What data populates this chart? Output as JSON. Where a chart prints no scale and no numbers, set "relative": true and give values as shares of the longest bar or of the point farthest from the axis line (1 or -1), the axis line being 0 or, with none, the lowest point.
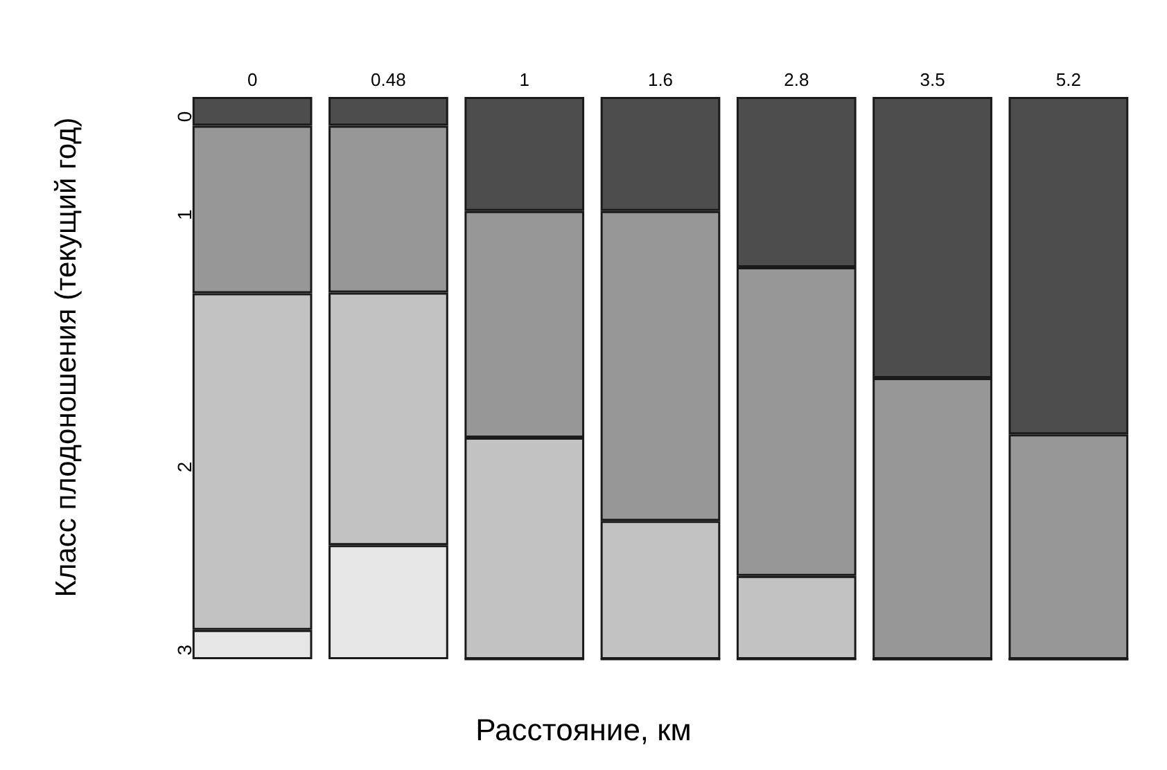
{
  "chart_data": {
    "type": "bar",
    "stacked": true,
    "relative": true,
    "xlabel": "Расстояние, км",
    "ylabel": "Класс плодоношения (текущий год)",
    "categories": [
      "0",
      "0.48",
      "1",
      "1.6",
      "2.8",
      "3.5",
      "5.2"
    ],
    "series": [
      {
        "name": "3",
        "color": "#e6e6e6",
        "values": [
          0.052,
          0.203,
          0,
          0,
          0,
          0,
          0
        ]
      },
      {
        "name": "2",
        "color": "#c2c2c2",
        "values": [
          0.599,
          0.449,
          0.394,
          0.246,
          0.148,
          0,
          0
        ]
      },
      {
        "name": "1",
        "color": "#979797",
        "values": [
          0.298,
          0.297,
          0.403,
          0.551,
          0.549,
          0.5,
          0.4
        ]
      },
      {
        "name": "0",
        "color": "#4d4d4d",
        "values": [
          0.051,
          0.051,
          0.203,
          0.203,
          0.303,
          0.5,
          0.6
        ]
      }
    ]
  }
}
